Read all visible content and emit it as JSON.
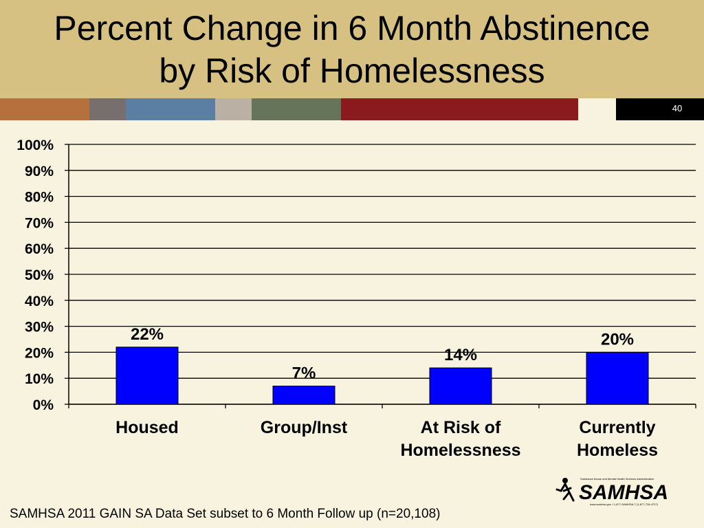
{
  "slide": {
    "title_line1": "Percent Change in 6 Month Abstinence",
    "title_line2": "by Risk of Homelessness",
    "number": "40",
    "source": "SAMHSA 2011 GAIN SA Data Set subset to 6 Month Follow up (n=20,108)",
    "logo_text": "SAMHSA",
    "logo_tagline": "Substance Abuse and Mental Health Services Administration",
    "logo_url": "www.samhsa.gov • 1-877-SAMHSA-7 (1-877-726-4727)"
  },
  "colors": {
    "title_band": "#d6c182",
    "background": "#f7f3de",
    "bar_fill": "#0000ff",
    "stripe": [
      "#b5703d",
      "#776f6d",
      "#5b7ea3",
      "#bab1a4",
      "#667559",
      "#8a1a1c",
      "#f7f3de",
      "#000000"
    ]
  },
  "chart_data": {
    "type": "bar",
    "categories": [
      [
        "Housed"
      ],
      [
        "Group/Inst"
      ],
      [
        "At Risk of",
        "Homelessness"
      ],
      [
        "Currently",
        "Homeless"
      ]
    ],
    "values": [
      22,
      7,
      14,
      20
    ],
    "value_labels": [
      "22%",
      "7%",
      "14%",
      "20%"
    ],
    "yticks": [
      "0%",
      "10%",
      "20%",
      "30%",
      "40%",
      "50%",
      "60%",
      "70%",
      "80%",
      "90%",
      "100%"
    ],
    "ylim": [
      0,
      100
    ],
    "grid": true,
    "legend": "none"
  }
}
